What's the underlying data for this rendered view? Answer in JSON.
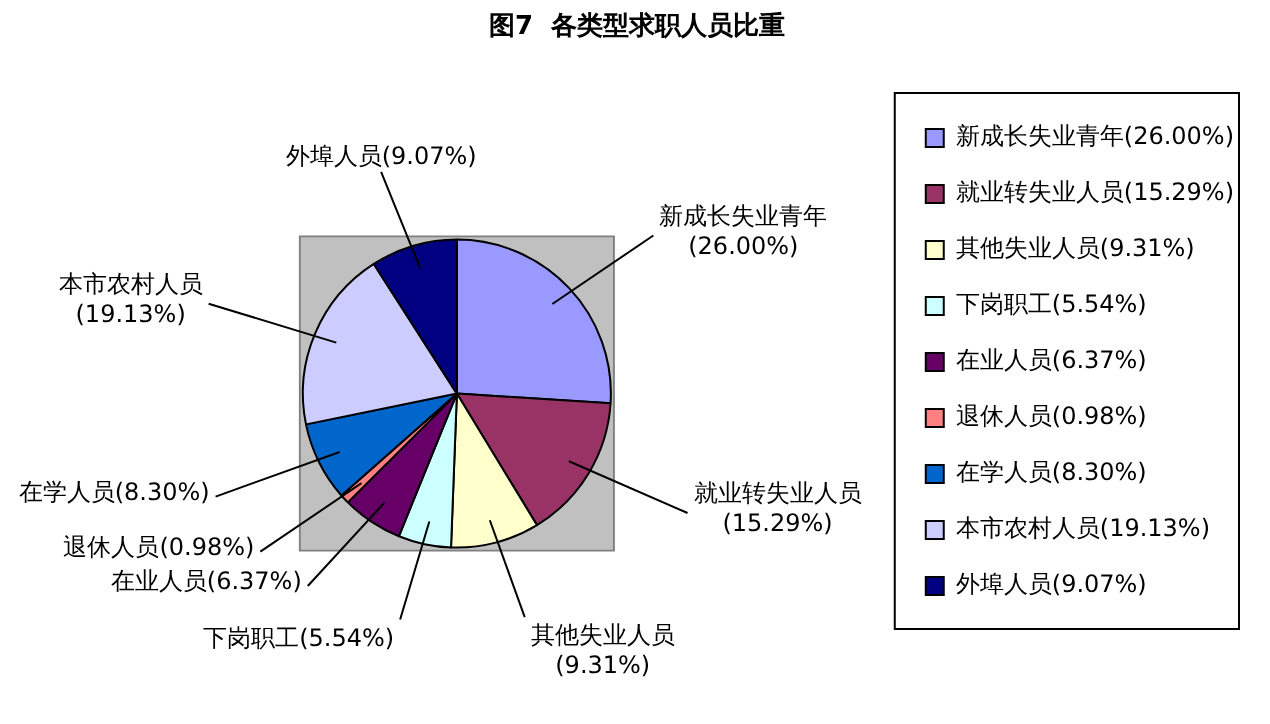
{
  "chart_data": {
    "type": "pie",
    "title": "图7  各类型求职人员比重",
    "categories": [
      "新成长失业青年",
      "就业转失业人员",
      "其他失业人员",
      "下岗职工",
      "在业人员",
      "退休人员",
      "在学人员",
      "本市农村人员",
      "外埠人员"
    ],
    "values": [
      26.0,
      15.29,
      9.31,
      5.54,
      6.37,
      0.98,
      8.3,
      19.13,
      9.07
    ],
    "value_labels": [
      "(26.00%)",
      "(15.29%)",
      "(9.31%)",
      "(5.54%)",
      "(6.37%)",
      "(0.98%)",
      "(8.30%)",
      "(19.13%)",
      "(9.07%)"
    ],
    "colors": [
      "#9999ff",
      "#993366",
      "#ffffcc",
      "#ccffff",
      "#660066",
      "#ff8080",
      "#0066cc",
      "#ccccff",
      "#000080"
    ],
    "legend": "right"
  }
}
